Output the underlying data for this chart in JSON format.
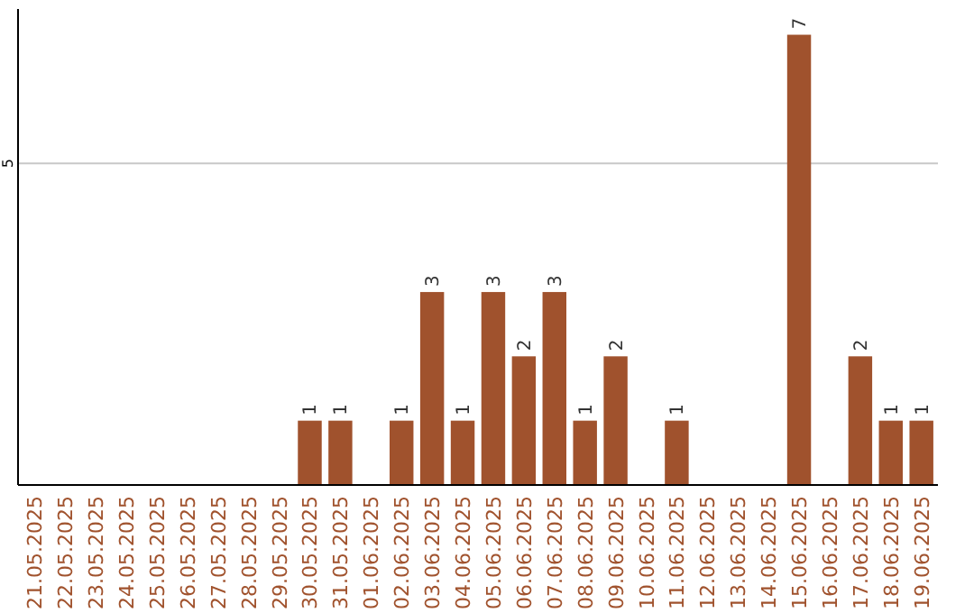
{
  "chart_data": {
    "type": "bar",
    "categories": [
      "21.05.2025",
      "22.05.2025",
      "23.05.2025",
      "24.05.2025",
      "25.05.2025",
      "26.05.2025",
      "27.05.2025",
      "28.05.2025",
      "29.05.2025",
      "30.05.2025",
      "31.05.2025",
      "01.06.2025",
      "02.06.2025",
      "03.06.2025",
      "04.06.2025",
      "05.06.2025",
      "06.06.2025",
      "07.06.2025",
      "08.06.2025",
      "09.06.2025",
      "10.06.2025",
      "11.06.2025",
      "12.06.2025",
      "13.06.2025",
      "14.06.2025",
      "15.06.2025",
      "16.06.2025",
      "17.06.2025",
      "18.06.2025",
      "19.06.2025"
    ],
    "values": [
      0,
      0,
      0,
      0,
      0,
      0,
      0,
      0,
      0,
      1,
      1,
      0,
      1,
      3,
      1,
      3,
      2,
      3,
      1,
      2,
      0,
      1,
      0,
      0,
      0,
      7,
      0,
      2,
      1,
      1
    ],
    "value_labels": [
      null,
      null,
      null,
      null,
      null,
      null,
      null,
      null,
      null,
      "1",
      "1",
      null,
      "1",
      "3",
      "1",
      "3",
      "2",
      "3",
      "1",
      "2",
      null,
      "1",
      null,
      null,
      null,
      "7",
      null,
      "2",
      "1",
      "1"
    ],
    "color": "#a0522d",
    "ylim": [
      0,
      7.4
    ],
    "yticks": [
      5
    ],
    "grid": "y"
  }
}
